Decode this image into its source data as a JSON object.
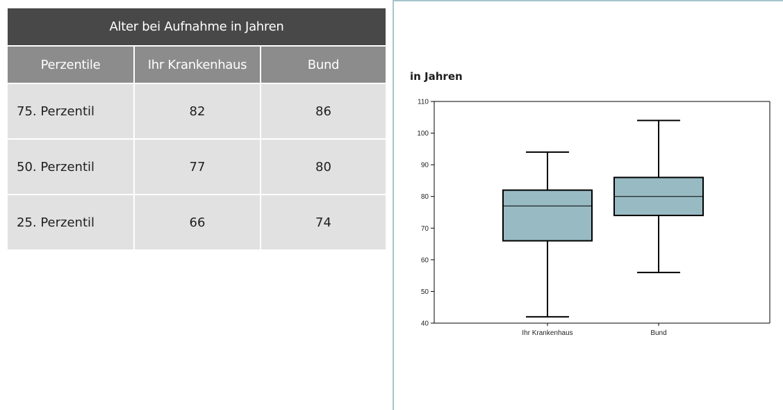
{
  "table": {
    "title": "Alter bei Aufnahme in Jahren",
    "headers": [
      "Perzentile",
      "Ihr Krankenhaus",
      "Bund"
    ],
    "rows": [
      [
        "75. Perzentil",
        "82",
        "86"
      ],
      [
        "50. Perzentil",
        "77",
        "80"
      ],
      [
        "25. Perzentil",
        "66",
        "74"
      ]
    ],
    "colors": {
      "title_bg": "#484848",
      "header_bg": "#8c8c8c",
      "row_bg": "#e1e1e1"
    }
  },
  "chart_data": {
    "type": "boxplot",
    "ylabel": "in Jahren",
    "ylim": [
      40,
      110
    ],
    "yticks": [
      40,
      50,
      60,
      70,
      80,
      90,
      100,
      110
    ],
    "categories": [
      "Ihr Krankenhaus",
      "Bund"
    ],
    "series": [
      {
        "category": "Ihr Krankenhaus",
        "whisker_low": 42,
        "q1": 66,
        "median": 77,
        "q3": 82,
        "whisker_high": 94
      },
      {
        "category": "Bund",
        "whisker_low": 56,
        "q1": 74,
        "median": 80,
        "q3": 86,
        "whisker_high": 104
      }
    ],
    "grid": false,
    "box_color": "#98bac3"
  }
}
